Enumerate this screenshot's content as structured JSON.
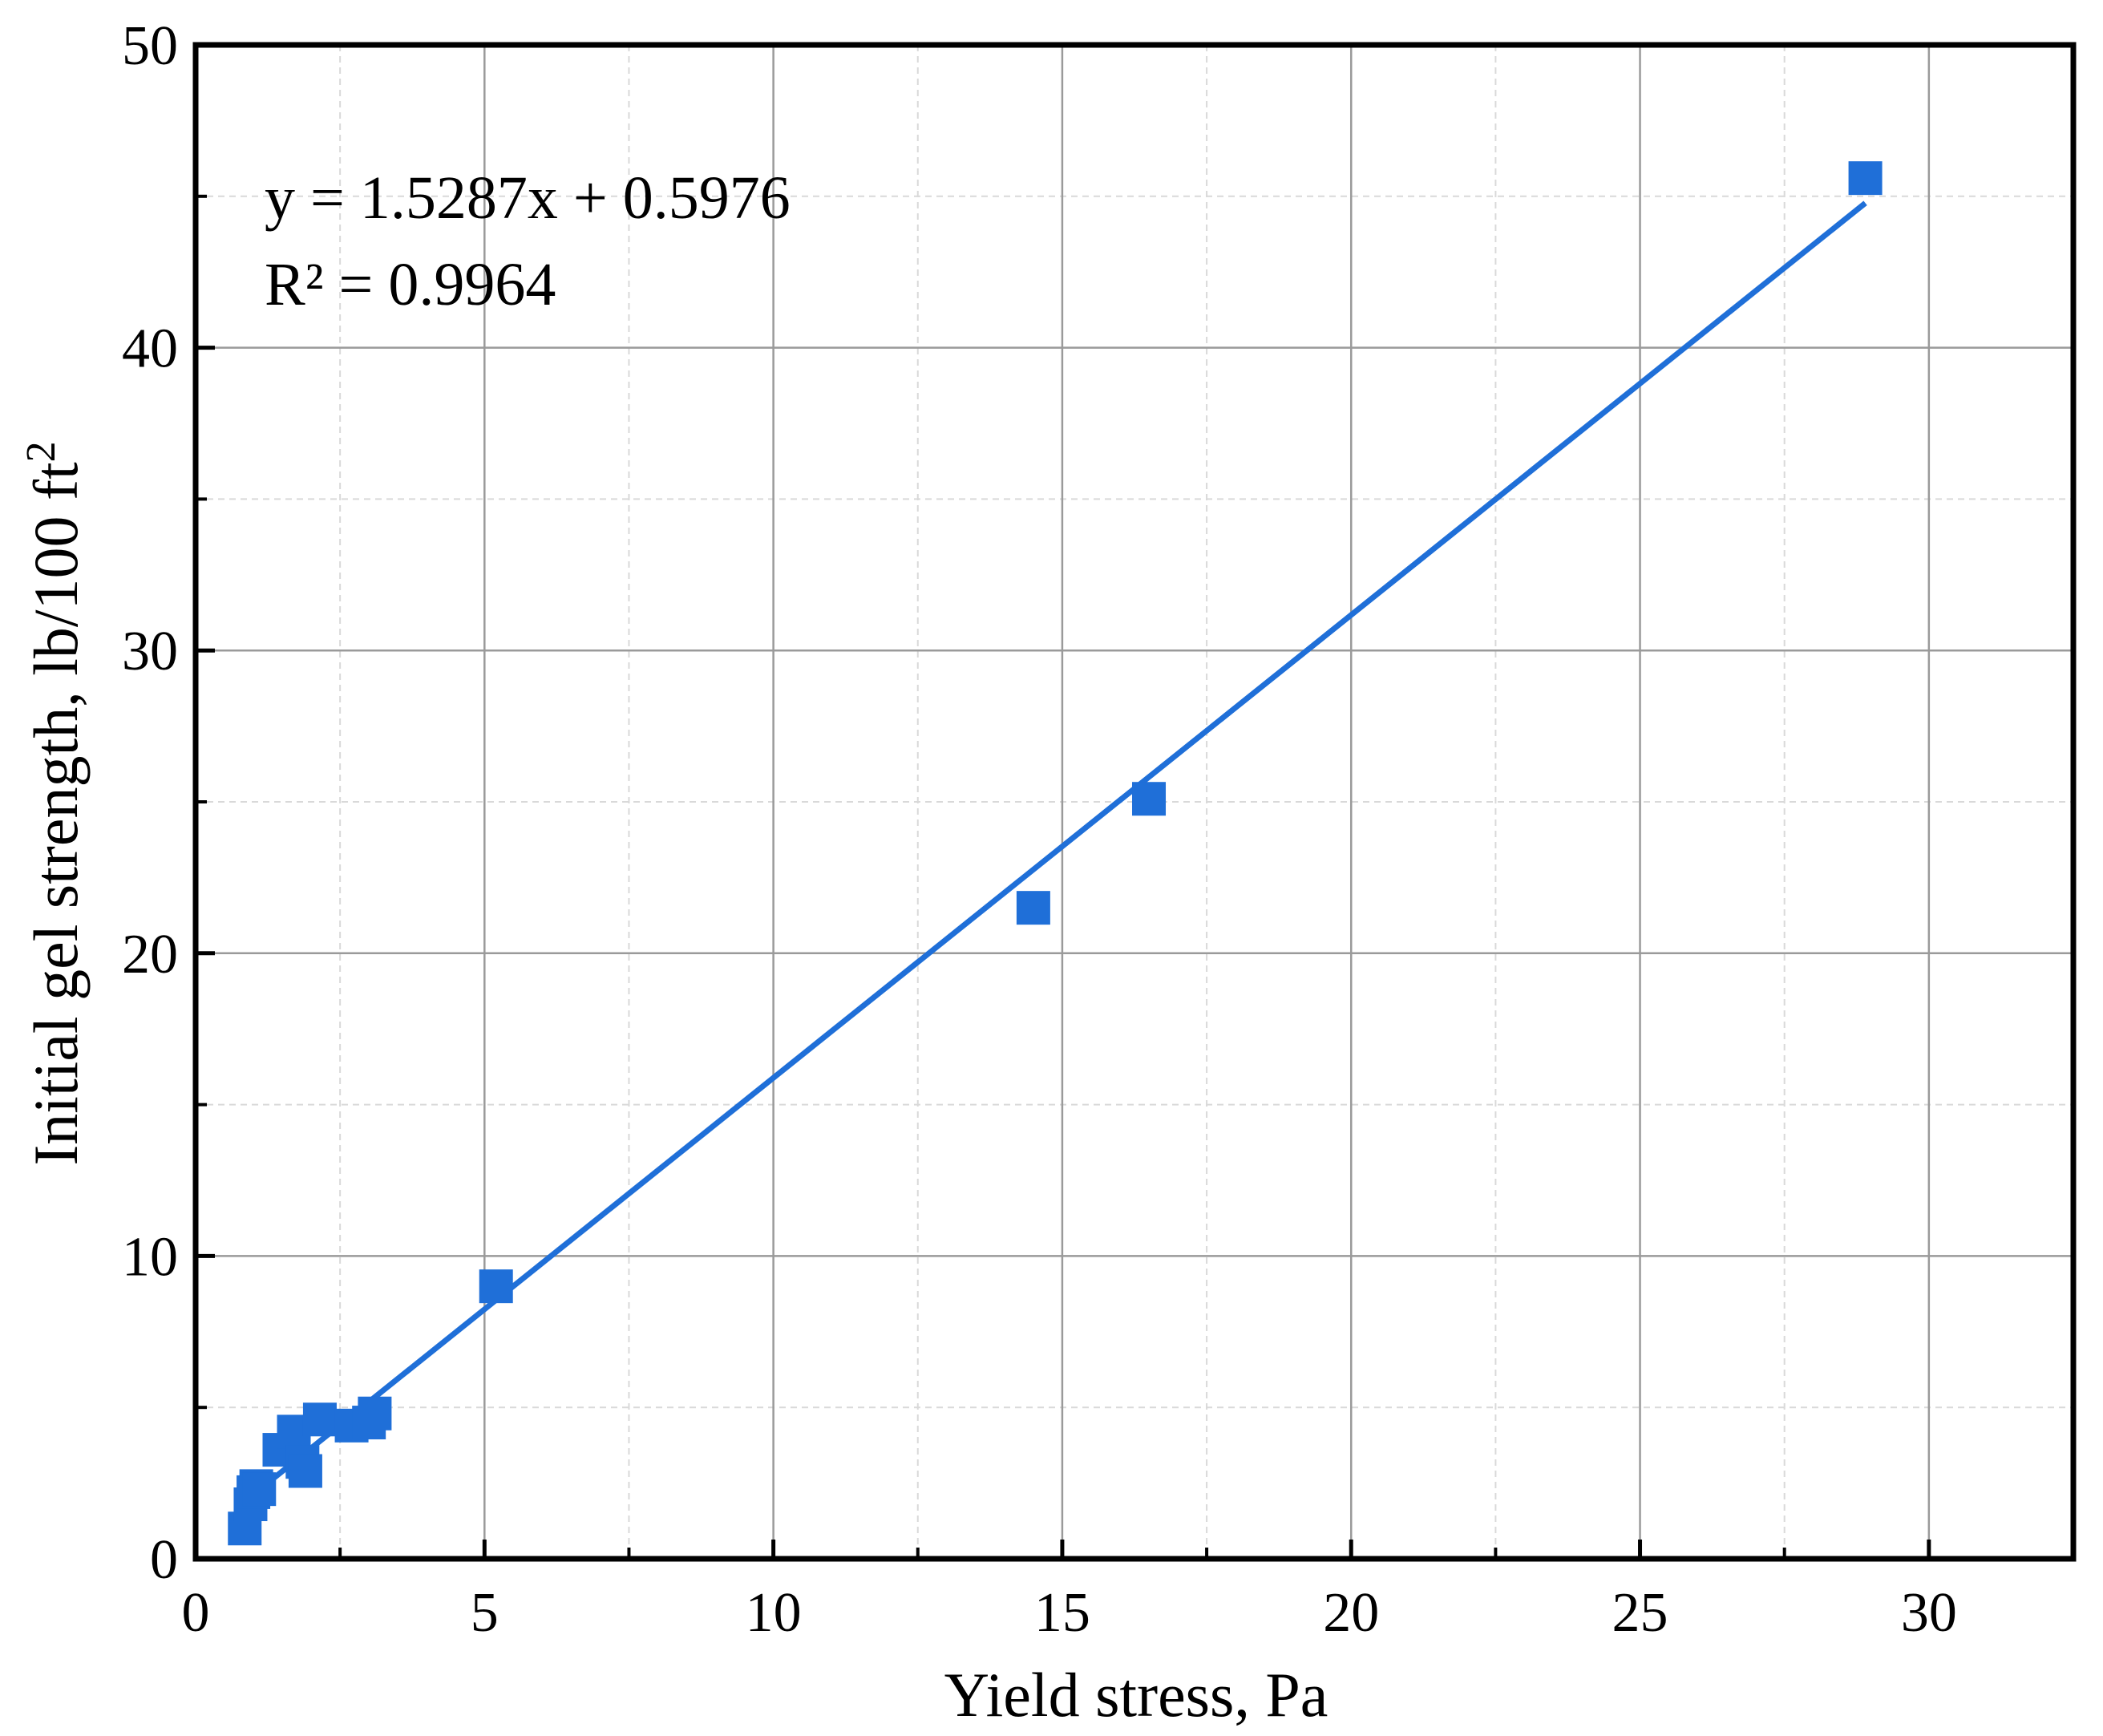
{
  "chart_data": {
    "type": "scatter",
    "title": "",
    "xlabel": "Yield stress, Pa",
    "ylabel": "Initial gel strength, lb/100 ft",
    "ylabel_superscript": "2",
    "xlim": [
      0,
      32.5
    ],
    "ylim": [
      0,
      50
    ],
    "xticks": [
      0,
      5,
      10,
      15,
      20,
      25,
      30
    ],
    "yticks": [
      0,
      10,
      20,
      30,
      40,
      50
    ],
    "x_minor_step": 2.5,
    "y_minor_step": 5,
    "grid": true,
    "marker": "square",
    "color": "#1f6fd8",
    "series": [
      {
        "x": [
          0.85,
          0.95,
          1.0,
          1.05,
          1.1,
          1.45,
          1.7,
          1.85,
          1.9,
          2.15,
          2.7,
          3.0,
          3.1,
          5.2,
          14.5,
          16.5,
          28.9
        ],
        "y": [
          1.0,
          1.8,
          2.2,
          2.4,
          2.3,
          3.6,
          4.2,
          3.2,
          2.9,
          4.6,
          4.4,
          4.5,
          4.8,
          9.0,
          21.5,
          25.1,
          45.6
        ]
      }
    ],
    "trendline": {
      "slope": 1.5287,
      "intercept": 0.5976,
      "x_range": [
        0.85,
        28.9
      ]
    },
    "annotations": {
      "equation": "y = 1.5287x + 0.5976",
      "r_squared": "R² = 0.9964"
    }
  }
}
